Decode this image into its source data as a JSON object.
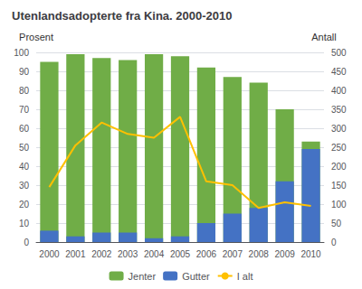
{
  "chart_data": {
    "type": "bar",
    "title": "Utenlandsadopterte fra Kina. 2000-2010",
    "y_label": "Prosent",
    "y2_label": "Antall",
    "categories": [
      "2000",
      "2001",
      "2002",
      "2003",
      "2004",
      "2005",
      "2006",
      "2007",
      "2008",
      "2009",
      "2010"
    ],
    "series": [
      {
        "name": "Jenter",
        "type": "bar",
        "color": "#70AD47",
        "values": [
          95,
          99,
          97,
          96,
          99,
          98,
          92,
          87,
          84,
          70,
          53
        ]
      },
      {
        "name": "Gutter",
        "type": "bar",
        "color": "#4472C4",
        "values": [
          6,
          3,
          5,
          5,
          2,
          3,
          10,
          15,
          18,
          32,
          49
        ]
      },
      {
        "name": "I alt",
        "type": "line",
        "axis": "y2",
        "color": "#FFC000",
        "values": [
          145,
          255,
          315,
          285,
          275,
          330,
          160,
          150,
          90,
          105,
          95
        ]
      }
    ],
    "ylim": [
      0,
      100
    ],
    "yticks": [
      0,
      10,
      20,
      30,
      40,
      50,
      60,
      70,
      80,
      90,
      100
    ],
    "y2lim": [
      0,
      500
    ],
    "y2ticks": [
      0,
      50,
      100,
      150,
      200,
      250,
      300,
      350,
      400,
      450,
      500
    ],
    "grid": true,
    "legend": "bottom"
  }
}
